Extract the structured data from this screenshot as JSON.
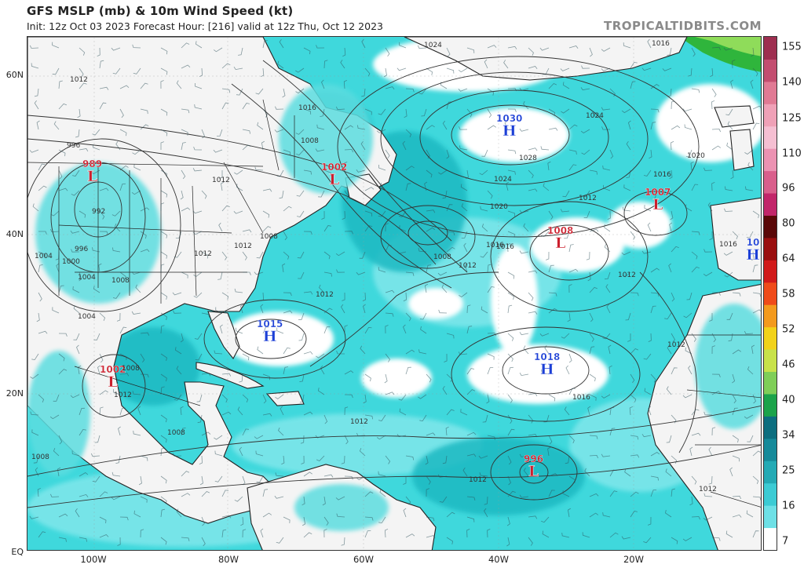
{
  "header": {
    "title": "GFS MSLP (mb) & 10m Wind Speed (kt)",
    "subtitle": "Init: 12z Oct 03 2023   Forecast Hour: [216]   valid at 12z Thu, Oct 12 2023",
    "site": "TROPICALTIDBITS.COM"
  },
  "axes": {
    "lat_labels": [
      "60N",
      "40N",
      "20N",
      "EQ"
    ],
    "lon_labels": [
      "100W",
      "80W",
      "60W",
      "40W",
      "20W"
    ]
  },
  "colorbar": {
    "ticks": [
      "155",
      "140",
      "125",
      "110",
      "96",
      "80",
      "64",
      "58",
      "52",
      "46",
      "40",
      "34",
      "25",
      "16",
      "7"
    ],
    "colors": [
      "#ffffff",
      "#6ee0e6",
      "#3ccbd4",
      "#24aab5",
      "#168a9a",
      "#0c6e7f",
      "#1ba34a",
      "#7fce58",
      "#c8e24a",
      "#f2d21a",
      "#f39a1e",
      "#ef4b1a",
      "#d11a1a",
      "#9a0f0f",
      "#5a0808",
      "#c2266a",
      "#d95f8c",
      "#eb92b2",
      "#f5bfd2",
      "#efa1b7",
      "#e07a94",
      "#c34e70",
      "#9e2f50"
    ]
  },
  "systems": [
    {
      "type": "L",
      "value": "989"
    },
    {
      "type": "L",
      "value": "1002"
    },
    {
      "type": "L",
      "value": "1007"
    },
    {
      "type": "L",
      "value": "1008"
    },
    {
      "type": "L",
      "value": "1002"
    },
    {
      "type": "L",
      "value": "996"
    },
    {
      "type": "H",
      "value": "1030"
    },
    {
      "type": "H",
      "value": "1015"
    },
    {
      "type": "H",
      "value": "1018"
    },
    {
      "type": "H",
      "value": "10"
    }
  ],
  "isobar_labels": [
    "1024",
    "1016",
    "1012",
    "996",
    "992",
    "996",
    "1004",
    "1000",
    "1004",
    "1008",
    "1012",
    "1016",
    "1008",
    "1008",
    "1012",
    "1008",
    "1024",
    "1028",
    "1020",
    "1024",
    "1020",
    "1016",
    "1012",
    "1016",
    "1012",
    "1012",
    "1016",
    "1012",
    "1012",
    "1008",
    "1012",
    "1004",
    "1012",
    "1016",
    "1012",
    "1008",
    "1008",
    "1012",
    "1012",
    "1016"
  ]
}
